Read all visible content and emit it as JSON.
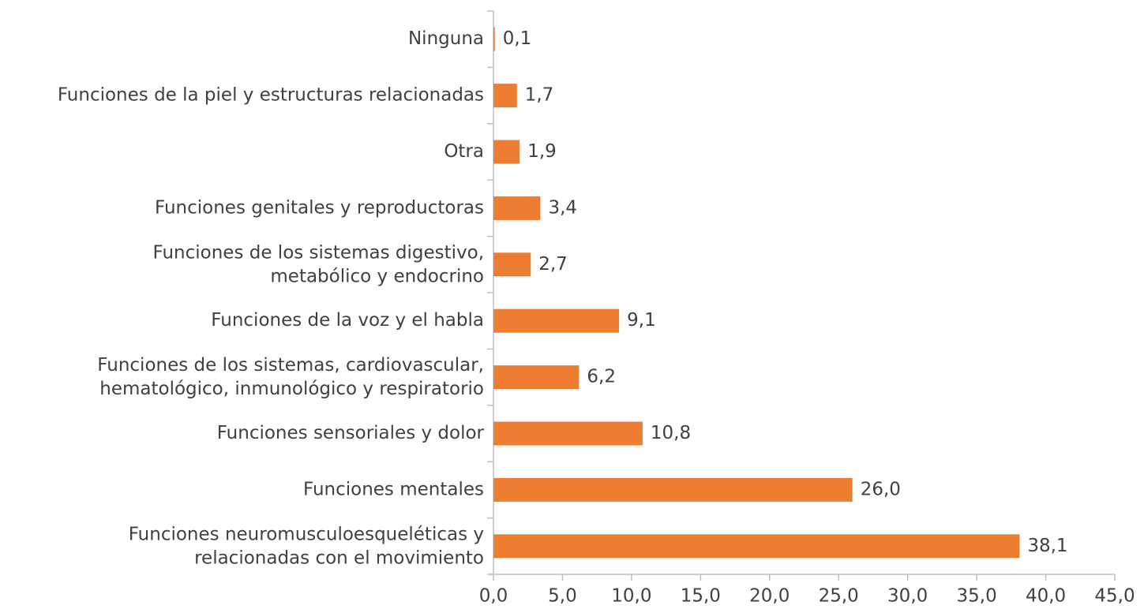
{
  "chart_data": {
    "type": "bar",
    "orientation": "horizontal",
    "categories": [
      "Ninguna",
      "Funciones de la piel y estructuras relacionadas",
      "Otra",
      "Funciones genitales y reproductoras",
      "Funciones de los sistemas digestivo,\nmetabólico y endocrino",
      "Funciones de la voz y el habla",
      "Funciones de los sistemas, cardiovascular,\nhematológico, inmunológico y respiratorio",
      "Funciones sensoriales y dolor",
      "Funciones mentales",
      "Funciones neuromusculoesqueléticas y\nrelacionadas con el movimiento"
    ],
    "values": [
      0.1,
      1.7,
      1.9,
      3.4,
      2.7,
      9.1,
      6.2,
      10.8,
      26.0,
      38.1
    ],
    "value_labels": [
      "0,1",
      "1,7",
      "1,9",
      "3,4",
      "2,7",
      "9,1",
      "6,2",
      "10,8",
      "26,0",
      "38,1"
    ],
    "color": "#ed7d31",
    "xlim": [
      0,
      45
    ],
    "xticks": [
      {
        "value": 0,
        "label": "0,0"
      },
      {
        "value": 5,
        "label": "5,0"
      },
      {
        "value": 10,
        "label": "10,0"
      },
      {
        "value": 15,
        "label": "15,0"
      },
      {
        "value": 20,
        "label": "20,0"
      },
      {
        "value": 25,
        "label": "25,0"
      },
      {
        "value": 30,
        "label": "30,0"
      },
      {
        "value": 35,
        "label": "35,0"
      },
      {
        "value": 40,
        "label": "40,0"
      },
      {
        "value": 45,
        "label": "45,0"
      }
    ],
    "grid": false
  }
}
